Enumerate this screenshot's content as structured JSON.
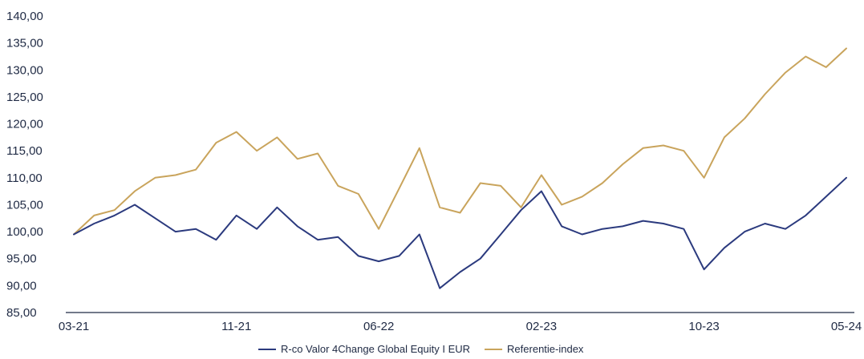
{
  "chart_data": {
    "type": "line",
    "title": "",
    "xlabel": "",
    "ylabel": "",
    "ylim": [
      85,
      140
    ],
    "yticks": [
      "140,00",
      "135,00",
      "130,00",
      "125,00",
      "120,00",
      "115,00",
      "110,00",
      "105,00",
      "100,00",
      "95,00",
      "90,00",
      "85,00"
    ],
    "ytick_values": [
      140,
      135,
      130,
      125,
      120,
      115,
      110,
      105,
      100,
      95,
      90,
      85
    ],
    "xticks": [
      "03-21",
      "11-21",
      "06-22",
      "02-23",
      "10-23",
      "05-24"
    ],
    "x": [
      "03-21",
      "04-21",
      "05-21",
      "06-21",
      "07-21",
      "08-21",
      "09-21",
      "10-21",
      "11-21",
      "12-21",
      "01-22",
      "02-22",
      "03-22",
      "04-22",
      "05-22",
      "06-22",
      "07-22",
      "08-22",
      "09-22",
      "10-22",
      "11-22",
      "12-22",
      "01-23",
      "02-23",
      "03-23",
      "04-23",
      "05-23",
      "06-23",
      "07-23",
      "08-23",
      "09-23",
      "10-23",
      "11-23",
      "12-23",
      "01-24",
      "02-24",
      "03-24",
      "04-24",
      "05-24"
    ],
    "series": [
      {
        "name": "R-co Valor 4Change Global Equity I EUR",
        "color": "#2b3a7e",
        "values": [
          99.5,
          101.5,
          103.0,
          105.0,
          102.5,
          100.0,
          100.5,
          98.5,
          103.0,
          100.5,
          104.5,
          101.0,
          98.5,
          99.0,
          95.5,
          94.5,
          95.5,
          99.5,
          89.5,
          92.5,
          95.0,
          99.5,
          104.0,
          107.5,
          101.0,
          99.5,
          100.5,
          101.0,
          102.0,
          101.5,
          100.5,
          93.0,
          97.0,
          100.0,
          101.5,
          100.5,
          103.0,
          106.5,
          110.0
        ]
      },
      {
        "name": "Referentie-index",
        "color": "#c9a45c",
        "values": [
          99.5,
          103.0,
          104.0,
          107.5,
          110.0,
          110.5,
          111.5,
          116.5,
          118.5,
          115.0,
          117.5,
          113.5,
          114.5,
          108.5,
          107.0,
          100.5,
          108.0,
          115.5,
          104.5,
          103.5,
          109.0,
          108.5,
          104.5,
          110.5,
          105.0,
          106.5,
          109.0,
          112.5,
          115.5,
          116.0,
          115.0,
          110.0,
          117.5,
          121.0,
          125.5,
          129.5,
          132.5,
          130.5,
          134.0
        ]
      }
    ],
    "legend_position": "bottom-center",
    "grid": false
  }
}
